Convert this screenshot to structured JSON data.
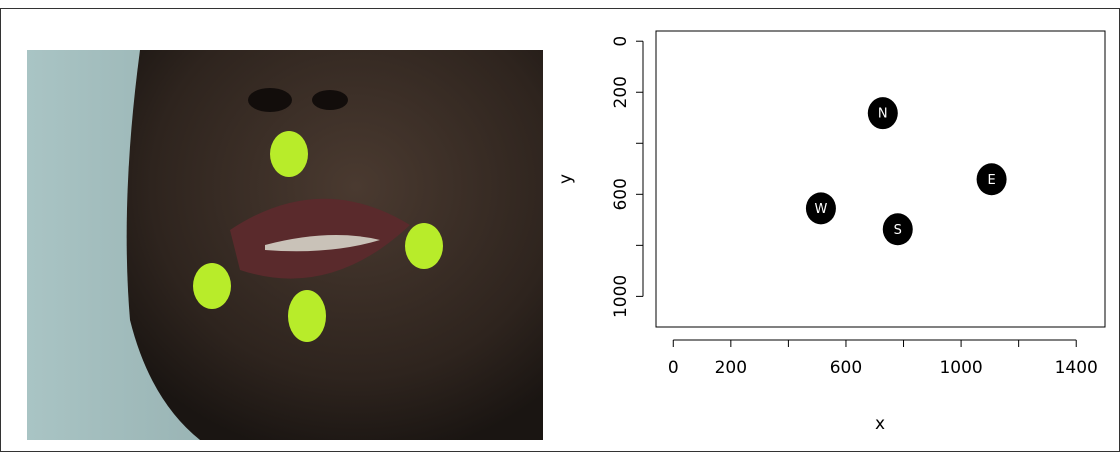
{
  "chart_data": {
    "type": "scatter",
    "x": [
      728,
      1106,
      513,
      780
    ],
    "values": [
      282,
      541,
      655,
      737
    ],
    "point_labels": [
      "N",
      "E",
      "W",
      "S"
    ],
    "color": "#000000",
    "xlabel": "x",
    "ylabel": "y",
    "xlim": [
      -60,
      1500
    ],
    "ylim": [
      1120,
      -40
    ],
    "xticks": [
      0,
      200,
      {
        "value": 400,
        "label": null
      },
      600,
      {
        "value": 800,
        "label": null
      },
      1000,
      {
        "value": 1200,
        "label": null
      },
      1400
    ],
    "yticks": [
      0,
      200,
      {
        "value": 400,
        "label": null
      },
      600,
      {
        "value": 800,
        "label": null
      },
      1000
    ]
  }
}
